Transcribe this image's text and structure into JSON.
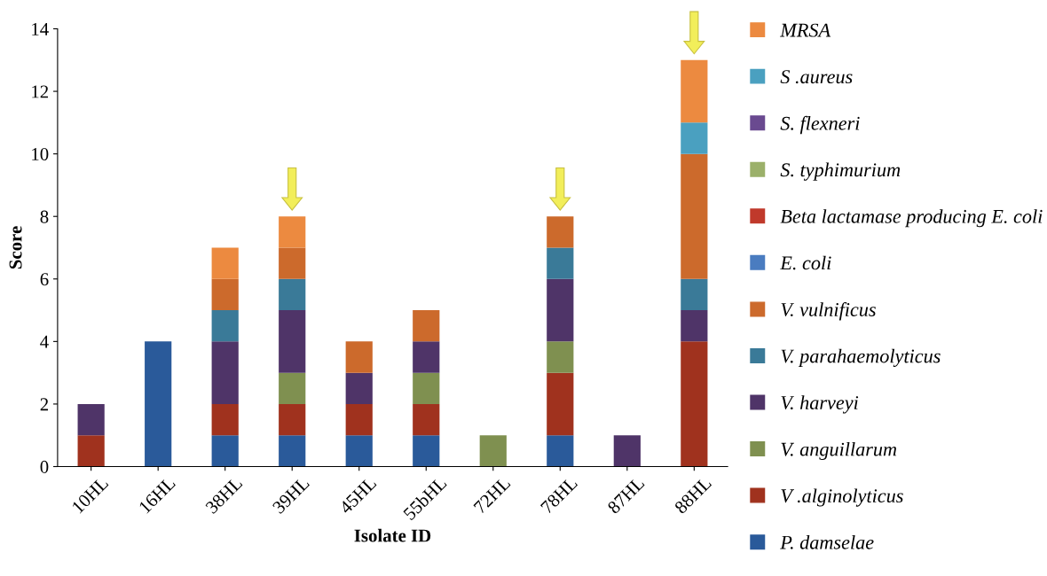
{
  "chart_data": {
    "type": "bar",
    "stacked": true,
    "xlabel": "Isolate ID",
    "ylabel": "Score",
    "categories": [
      "10HL",
      "16HL",
      "38HL",
      "39HL",
      "45HL",
      "55bHL",
      "72HL",
      "78HL",
      "87HL",
      "88HL"
    ],
    "series": [
      {
        "name": "P. damselae",
        "color": "#2a5a9a",
        "values": [
          0,
          4,
          1,
          1,
          1,
          1,
          0,
          1,
          0,
          0
        ]
      },
      {
        "name": "V .alginolyticus",
        "color": "#a0321e",
        "values": [
          1,
          0,
          1,
          1,
          1,
          1,
          0,
          2,
          0,
          4
        ]
      },
      {
        "name": "V. anguillarum",
        "color": "#7f9050",
        "values": [
          0,
          0,
          0,
          1,
          0,
          1,
          1,
          1,
          0,
          0
        ]
      },
      {
        "name": "V. harveyi",
        "color": "#4f3468",
        "values": [
          1,
          0,
          2,
          2,
          1,
          1,
          0,
          2,
          1,
          1
        ]
      },
      {
        "name": "V. parahaemolyticus",
        "color": "#3a7a98",
        "values": [
          0,
          0,
          1,
          1,
          0,
          0,
          0,
          1,
          0,
          1
        ]
      },
      {
        "name": "V. vulnificus",
        "color": "#cc6a2c",
        "values": [
          0,
          0,
          1,
          1,
          1,
          1,
          0,
          1,
          0,
          4
        ]
      },
      {
        "name": "E. coli",
        "color": "#4a7cc0",
        "values": [
          0,
          0,
          0,
          0,
          0,
          0,
          0,
          0,
          0,
          0
        ]
      },
      {
        "name": "Beta lactamase producing E. coli",
        "color": "#c0392b",
        "values": [
          0,
          0,
          0,
          0,
          0,
          0,
          0,
          0,
          0,
          0
        ]
      },
      {
        "name": "S. typhimurium",
        "color": "#9bb06a",
        "values": [
          0,
          0,
          0,
          0,
          0,
          0,
          0,
          0,
          0,
          0
        ]
      },
      {
        "name": "S. flexneri",
        "color": "#6a4a90",
        "values": [
          0,
          0,
          0,
          0,
          0,
          0,
          0,
          0,
          0,
          0
        ]
      },
      {
        "name": "S .aureus",
        "color": "#4aa0c0",
        "values": [
          0,
          0,
          0,
          0,
          0,
          0,
          0,
          0,
          0,
          1
        ]
      },
      {
        "name": "MRSA",
        "color": "#ec8a40",
        "values": [
          0,
          0,
          1,
          1,
          0,
          0,
          0,
          0,
          0,
          2
        ]
      }
    ],
    "ylim": [
      0,
      14
    ],
    "yticks": [
      0,
      2,
      4,
      6,
      8,
      10,
      12,
      14
    ],
    "grid": false,
    "legend": "right"
  }
}
